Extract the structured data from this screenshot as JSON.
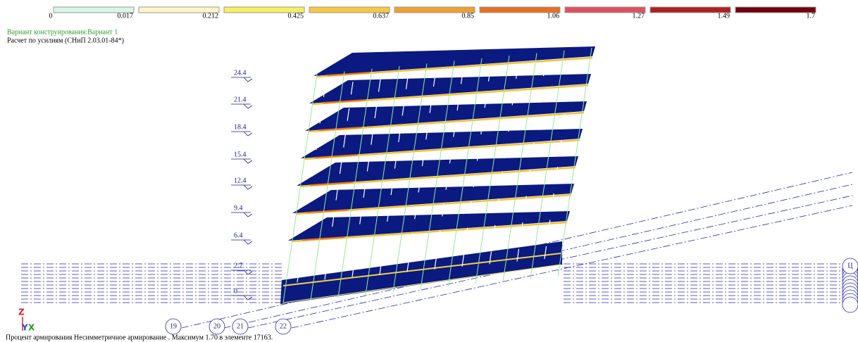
{
  "legend": {
    "labels": [
      "0",
      "0.017",
      "0.212",
      "0.425",
      "0.637",
      "0.85",
      "1.06",
      "1.27",
      "1.49",
      "1.7"
    ],
    "colors": [
      "#d8f5e6",
      "#fff6c8",
      "#f7f060",
      "#f8c840",
      "#f0a030",
      "#e87020",
      "#e05060",
      "#b02020",
      "#700010"
    ]
  },
  "header": {
    "variant": "Вариант конструирования:Вариант 1",
    "method": "Расчет по усилиям (СНиП 2.03.01-84*)"
  },
  "levels": [
    "24.4",
    "21.4",
    "18.4",
    "15.4",
    "12.4",
    "9.4",
    "6.4",
    "2.7",
    "0"
  ],
  "axes": [
    "19",
    "20",
    "21",
    "22",
    "Ц"
  ],
  "triad": {
    "z": "Z",
    "y": "Y",
    "x": "X"
  },
  "status": "Процент армирования Несимметричное армирование . Максимум 1.70 в элементе 17163."
}
